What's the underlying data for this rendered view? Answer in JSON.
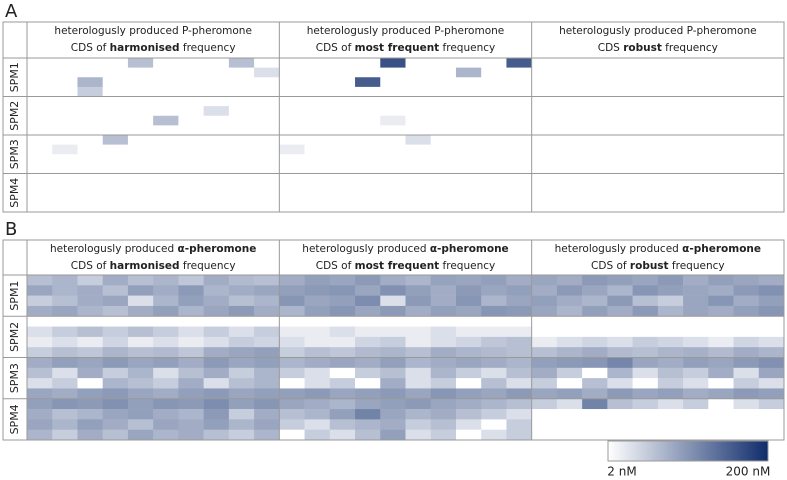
{
  "chart_data": {
    "type": "heatmap",
    "colorbar": {
      "min": 2,
      "max": 200,
      "min_label": "2 nM",
      "max_label": "200 nM",
      "log": true,
      "colors": [
        "#ffffff",
        "#0f2c6b"
      ]
    },
    "panels": [
      {
        "label": "A",
        "columns": [
          {
            "line1": [
              "heterologusly produced P-pheromone"
            ],
            "line2": [
              "CDS of ",
              "harmonised",
              " frequency"
            ]
          },
          {
            "line1": [
              "heterologusly produced P-pheromone"
            ],
            "line2": [
              "CDS of ",
              "most frequent",
              " frequency"
            ]
          },
          {
            "line1": [
              "heterologusly produced P-pheromone"
            ],
            "line2": [
              "CDS ",
              "robust",
              " frequency"
            ]
          }
        ],
        "rows": [
          "SPM1",
          "SPM2",
          "SPM3",
          "SPM4"
        ],
        "values": [
          [
            2,
            2,
            2,
            2,
            8,
            2,
            2,
            2,
            8,
            2,
            2,
            2,
            2,
            2,
            90,
            2,
            2,
            2,
            2,
            70,
            2,
            2,
            2,
            2,
            2,
            2,
            2,
            2,
            2,
            2
          ],
          [
            2,
            2,
            2,
            2,
            2,
            2,
            2,
            2,
            2,
            4,
            2,
            2,
            2,
            2,
            2,
            2,
            2,
            10,
            2,
            2,
            2,
            2,
            2,
            2,
            2,
            2,
            2,
            2,
            2,
            2
          ],
          [
            2,
            2,
            10,
            2,
            2,
            2,
            2,
            2,
            2,
            2,
            2,
            2,
            2,
            70,
            2,
            2,
            2,
            2,
            2,
            2,
            2,
            2,
            2,
            2,
            2,
            2,
            2,
            2,
            2,
            2
          ],
          [
            2,
            2,
            6,
            2,
            2,
            2,
            2,
            2,
            2,
            2,
            2,
            2,
            2,
            2,
            2,
            2,
            2,
            2,
            2,
            2,
            2,
            2,
            2,
            2,
            2,
            2,
            2,
            2,
            2,
            2
          ],
          [
            2,
            2,
            2,
            2,
            2,
            2,
            2,
            2,
            2,
            2,
            2,
            2,
            2,
            2,
            2,
            2,
            2,
            2,
            2,
            2,
            2,
            2,
            2,
            2,
            2,
            2,
            2,
            2,
            2,
            2
          ],
          [
            2,
            2,
            2,
            2,
            2,
            2,
            2,
            4,
            2,
            2,
            2,
            2,
            2,
            2,
            2,
            2,
            2,
            2,
            2,
            2,
            2,
            2,
            2,
            2,
            2,
            2,
            2,
            2,
            2,
            2
          ],
          [
            2,
            2,
            2,
            2,
            2,
            8,
            2,
            2,
            2,
            2,
            2,
            2,
            2,
            2,
            3,
            2,
            2,
            2,
            2,
            2,
            2,
            2,
            2,
            2,
            2,
            2,
            2,
            2,
            2,
            2
          ],
          [
            2,
            2,
            2,
            2,
            2,
            2,
            2,
            2,
            2,
            2,
            2,
            2,
            2,
            2,
            2,
            2,
            2,
            2,
            2,
            2,
            2,
            2,
            2,
            2,
            2,
            2,
            2,
            2,
            2,
            2
          ],
          [
            2,
            2,
            2,
            8,
            2,
            2,
            2,
            2,
            2,
            2,
            2,
            2,
            2,
            2,
            2,
            4,
            2,
            2,
            2,
            2,
            2,
            2,
            2,
            2,
            2,
            2,
            2,
            2,
            2,
            2
          ],
          [
            2,
            3,
            2,
            2,
            2,
            2,
            2,
            2,
            2,
            2,
            3,
            2,
            2,
            2,
            2,
            2,
            2,
            2,
            2,
            2,
            2,
            2,
            2,
            2,
            2,
            2,
            2,
            2,
            2,
            2
          ],
          [
            2,
            2,
            2,
            2,
            2,
            2,
            2,
            2,
            2,
            2,
            2,
            2,
            2,
            2,
            2,
            2,
            2,
            2,
            2,
            2,
            2,
            2,
            2,
            2,
            2,
            2,
            2,
            2,
            2,
            2
          ],
          [
            2,
            2,
            2,
            2,
            2,
            2,
            2,
            2,
            2,
            2,
            2,
            2,
            2,
            2,
            2,
            2,
            2,
            2,
            2,
            2,
            2,
            2,
            2,
            2,
            2,
            2,
            2,
            2,
            2,
            2
          ],
          [
            2,
            2,
            2,
            2,
            2,
            2,
            2,
            2,
            2,
            2,
            2,
            2,
            2,
            2,
            2,
            2,
            2,
            2,
            2,
            2,
            2,
            2,
            2,
            2,
            2,
            2,
            2,
            2,
            2,
            2
          ],
          [
            2,
            2,
            2,
            2,
            2,
            2,
            2,
            2,
            2,
            2,
            2,
            2,
            2,
            2,
            2,
            2,
            2,
            2,
            2,
            2,
            2,
            2,
            2,
            2,
            2,
            2,
            2,
            2,
            2,
            2
          ],
          [
            2,
            2,
            2,
            2,
            2,
            2,
            2,
            2,
            2,
            2,
            2,
            2,
            2,
            2,
            2,
            2,
            2,
            2,
            2,
            2,
            2,
            2,
            2,
            2,
            2,
            2,
            2,
            2,
            2,
            2
          ],
          [
            2,
            2,
            2,
            2,
            2,
            2,
            2,
            2,
            2,
            2,
            2,
            2,
            2,
            2,
            2,
            2,
            2,
            2,
            2,
            2,
            2,
            2,
            2,
            2,
            2,
            2,
            2,
            2,
            2,
            2
          ]
        ]
      },
      {
        "label": "B",
        "columns": [
          {
            "line1": [
              "heterologusly produced ",
              "α-pheromone"
            ],
            "line2": [
              "CDS of ",
              "harmonised",
              " frequency"
            ]
          },
          {
            "line1": [
              "heterologusly produced ",
              "α-pheromone"
            ],
            "line2": [
              "CDS of ",
              "most frequent",
              " frequency"
            ]
          },
          {
            "line1": [
              "heterologusly produced ",
              "α-pheromone"
            ],
            "line2": [
              "CDS of ",
              "robust",
              " frequency"
            ]
          }
        ],
        "rows": [
          "SPM1",
          "SPM2",
          "SPM3",
          "SPM4"
        ],
        "values": [
          [
            8,
            10,
            6,
            12,
            8,
            10,
            7,
            12,
            9,
            8,
            12,
            16,
            14,
            18,
            12,
            10,
            15,
            14,
            16,
            12,
            14,
            12,
            18,
            16,
            14,
            18,
            12,
            16,
            14,
            12
          ],
          [
            14,
            10,
            12,
            8,
            16,
            12,
            18,
            10,
            12,
            14,
            16,
            18,
            20,
            14,
            22,
            16,
            12,
            18,
            14,
            16,
            12,
            18,
            14,
            10,
            20,
            16,
            14,
            12,
            18,
            22
          ],
          [
            6,
            8,
            12,
            14,
            4,
            10,
            16,
            12,
            8,
            10,
            20,
            14,
            16,
            24,
            4,
            18,
            12,
            20,
            10,
            14,
            16,
            12,
            10,
            18,
            8,
            6,
            14,
            20,
            12,
            16
          ],
          [
            12,
            14,
            10,
            8,
            12,
            16,
            10,
            14,
            18,
            12,
            10,
            16,
            20,
            14,
            18,
            12,
            16,
            14,
            20,
            18,
            14,
            10,
            16,
            12,
            18,
            10,
            14,
            12,
            16,
            20
          ],
          [
            2,
            2,
            2,
            2,
            2,
            2,
            2,
            2,
            2,
            2,
            2,
            2,
            2,
            2,
            2,
            2,
            2,
            2,
            2,
            2,
            2,
            2,
            2,
            2,
            2,
            2,
            2,
            2,
            2,
            2
          ],
          [
            4,
            6,
            8,
            6,
            8,
            6,
            4,
            6,
            4,
            6,
            3,
            3,
            4,
            3,
            3,
            3,
            4,
            3,
            3,
            3,
            2,
            2,
            2,
            2,
            2,
            2,
            2,
            2,
            2,
            2
          ],
          [
            3,
            4,
            3,
            5,
            3,
            4,
            3,
            4,
            6,
            5,
            4,
            3,
            3,
            5,
            6,
            3,
            4,
            5,
            7,
            8,
            3,
            4,
            5,
            4,
            6,
            5,
            4,
            3,
            5,
            4
          ],
          [
            6,
            8,
            7,
            10,
            8,
            9,
            7,
            12,
            14,
            16,
            6,
            8,
            7,
            9,
            10,
            8,
            12,
            10,
            9,
            8,
            8,
            10,
            12,
            9,
            8,
            10,
            11,
            9,
            12,
            10
          ],
          [
            12,
            16,
            14,
            18,
            14,
            16,
            12,
            18,
            14,
            16,
            10,
            12,
            14,
            12,
            16,
            10,
            12,
            14,
            12,
            10,
            16,
            18,
            20,
            28,
            14,
            12,
            16,
            14,
            18,
            22
          ],
          [
            8,
            4,
            12,
            6,
            10,
            4,
            8,
            12,
            6,
            10,
            6,
            4,
            2,
            6,
            8,
            4,
            10,
            6,
            4,
            8,
            12,
            6,
            2,
            10,
            4,
            8,
            6,
            12,
            4,
            14
          ],
          [
            4,
            6,
            2,
            10,
            8,
            6,
            12,
            4,
            8,
            10,
            2,
            4,
            6,
            2,
            12,
            4,
            6,
            2,
            8,
            4,
            6,
            2,
            8,
            4,
            2,
            6,
            4,
            2,
            6,
            4
          ],
          [
            14,
            12,
            16,
            18,
            14,
            12,
            16,
            18,
            14,
            16,
            16,
            18,
            14,
            16,
            18,
            14,
            20,
            16,
            14,
            18,
            14,
            16,
            12,
            18,
            14,
            16,
            12,
            14,
            18,
            16
          ],
          [
            16,
            20,
            18,
            22,
            16,
            20,
            18,
            24,
            16,
            20,
            14,
            12,
            10,
            14,
            16,
            18,
            14,
            12,
            10,
            8,
            6,
            4,
            30,
            8,
            6,
            4,
            6,
            2,
            4,
            6
          ],
          [
            12,
            8,
            10,
            14,
            16,
            12,
            10,
            18,
            6,
            12,
            8,
            10,
            16,
            30,
            14,
            10,
            12,
            8,
            6,
            4,
            2,
            2,
            2,
            2,
            2,
            2,
            2,
            2,
            2,
            2
          ],
          [
            14,
            10,
            16,
            12,
            8,
            14,
            12,
            16,
            10,
            14,
            6,
            4,
            8,
            10,
            12,
            6,
            8,
            4,
            2,
            6,
            2,
            2,
            2,
            2,
            2,
            2,
            2,
            2,
            2,
            2
          ],
          [
            10,
            6,
            12,
            8,
            14,
            10,
            12,
            8,
            6,
            10,
            2,
            6,
            4,
            8,
            16,
            4,
            6,
            2,
            4,
            6,
            2,
            2,
            2,
            2,
            2,
            2,
            2,
            2,
            2,
            2
          ]
        ]
      }
    ]
  }
}
